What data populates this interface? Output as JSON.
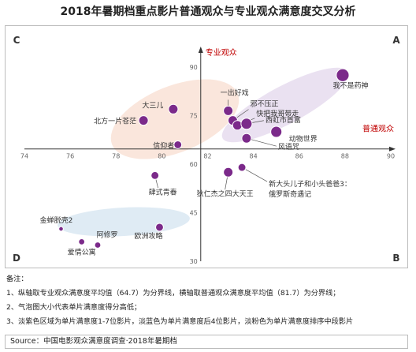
{
  "title": "2018年暑期档重点影片普通观众与专业观众满意度交叉分析",
  "chart_data": {
    "type": "scatter",
    "subtype": "bubble",
    "xlabel": "普通观众",
    "ylabel": "专业观众",
    "xlim": [
      74,
      90
    ],
    "ylim": [
      30,
      90
    ],
    "x_ticks": [
      74,
      76,
      78,
      80,
      82,
      84,
      86,
      88,
      90
    ],
    "x_tick_labels": [
      "74",
      "76",
      "78",
      "80",
      "82",
      "84",
      "86",
      "88",
      "90"
    ],
    "y_ticks": [
      30,
      45,
      60,
      75,
      90
    ],
    "y_tick_labels": [
      "30",
      "45",
      "60",
      "75",
      "90"
    ],
    "x_divider": 81.7,
    "y_divider": 64.7,
    "quadrant_labels": [
      "A",
      "B",
      "C",
      "D"
    ],
    "axis_label_color": "#c00000",
    "points": [
      {
        "name": "我不是药神",
        "x": 87.9,
        "y": 87.5,
        "size": 6
      },
      {
        "name": "一出好戏",
        "x": 82.9,
        "y": 76.5,
        "size": 4
      },
      {
        "name": "邪不压正",
        "x": 83.1,
        "y": 73.5,
        "size": 4
      },
      {
        "name": "快把我哥带走",
        "x": 83.3,
        "y": 72.0,
        "size": 4
      },
      {
        "name": "西虹市首富",
        "x": 83.7,
        "y": 72.5,
        "size": 5
      },
      {
        "name": "动物世界",
        "x": 85.0,
        "y": 70.0,
        "size": 5
      },
      {
        "name": "风语咒",
        "x": 83.7,
        "y": 68.0,
        "size": 4
      },
      {
        "name": "新大头儿子和小头爸爸3：俄罗斯奇遇记",
        "x": 83.5,
        "y": 59.0,
        "size": 3
      },
      {
        "name": "狄仁杰之四大天王",
        "x": 82.9,
        "y": 57.5,
        "size": 4
      },
      {
        "name": "大三儿",
        "x": 80.5,
        "y": 77.0,
        "size": 4
      },
      {
        "name": "北方一片苍茫",
        "x": 79.2,
        "y": 73.5,
        "size": 4
      },
      {
        "name": "信仰者",
        "x": 80.7,
        "y": 66.0,
        "size": 3
      },
      {
        "name": "肆式青春",
        "x": 79.7,
        "y": 56.5,
        "size": 3
      },
      {
        "name": "欧洲攻略",
        "x": 79.9,
        "y": 40.5,
        "size": 3
      },
      {
        "name": "阿修罗",
        "x": 77.2,
        "y": 35.0,
        "size": 2
      },
      {
        "name": "爱情公寓",
        "x": 76.5,
        "y": 36.0,
        "size": 2
      },
      {
        "name": "金蝉脱壳2",
        "x": 75.6,
        "y": 40.0,
        "size": 1
      }
    ]
  },
  "notes": {
    "heading": "备注：",
    "items": [
      "1、纵轴取专业观众满意度平均值（64.7）为分界线，横轴取普通观众满意度平均值（81.7）为分界线；",
      "2、气泡图大小代表单片满意度得分高低；",
      "3、淡紫色区域为单片满意度1-7位影片，淡蓝色为单片满意度后4位影片，淡粉色为单片满意度排序中段影片"
    ]
  },
  "source": "Source：中国电影观众满意度调查·2018年暑期档"
}
